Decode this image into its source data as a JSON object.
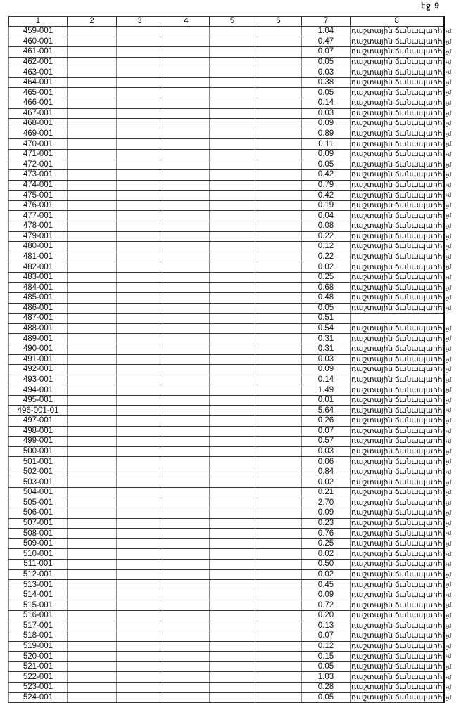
{
  "page_label": "էջ 9",
  "headers": [
    "1",
    "2",
    "3",
    "4",
    "5",
    "6",
    "7",
    "8"
  ],
  "land_type": "դաշտային ճանապարհ",
  "margin_note": "չմ",
  "rows": [
    {
      "id": "459-001",
      "area": "1.04",
      "type": "դաշտային ճանապարհ"
    },
    {
      "id": "460-001",
      "area": "0.47",
      "type": "դաշտային ճանապարհ"
    },
    {
      "id": "461-001",
      "area": "0.07",
      "type": "դաշտային ճանապարհ"
    },
    {
      "id": "462-001",
      "area": "0.05",
      "type": "դաշտային ճանապարհ"
    },
    {
      "id": "463-001",
      "area": "0.03",
      "type": "դաշտային ճանապարհ"
    },
    {
      "id": "464-001",
      "area": "0.38",
      "type": "դաշտային ճանապարհ"
    },
    {
      "id": "465-001",
      "area": "0.05",
      "type": "դաշտային ճանապարհ"
    },
    {
      "id": "466-001",
      "area": "0.14",
      "type": "դաշտային ճանապարհ"
    },
    {
      "id": "467-001",
      "area": "0.03",
      "type": "դաշտային ճանապարհ"
    },
    {
      "id": "468-001",
      "area": "0.09",
      "type": "դաշտային ճանապարհ"
    },
    {
      "id": "469-001",
      "area": "0.89",
      "type": "դաշտային ճանապարհ"
    },
    {
      "id": "470-001",
      "area": "0.11",
      "type": "դաշտային ճանապարհ"
    },
    {
      "id": "471-001",
      "area": "0.09",
      "type": "դաշտային ճանապարհ"
    },
    {
      "id": "472-001",
      "area": "0.05",
      "type": "դաշտային ճանապարհ"
    },
    {
      "id": "473-001",
      "area": "0.42",
      "type": "դաշտային ճանապարհ"
    },
    {
      "id": "474-001",
      "area": "0.79",
      "type": "դաշտային ճանապարհ"
    },
    {
      "id": "475-001",
      "area": "0.42",
      "type": "դաշտային ճանապարհ"
    },
    {
      "id": "476-001",
      "area": "0.19",
      "type": "դաշտային ճանապարհ"
    },
    {
      "id": "477-001",
      "area": "0.04",
      "type": "դաշտային ճանապարհ"
    },
    {
      "id": "478-001",
      "area": "0.08",
      "type": "դաշտային ճանապարհ"
    },
    {
      "id": "479-001",
      "area": "0.22",
      "type": "դաշտային ճանապարհ"
    },
    {
      "id": "480-001",
      "area": "0.12",
      "type": "դաշտային ճանապարհ"
    },
    {
      "id": "481-001",
      "area": "0.22",
      "type": "դաշտային ճանապարհ"
    },
    {
      "id": "482-001",
      "area": "0.02",
      "type": "դաշտային ճանապարհ"
    },
    {
      "id": "483-001",
      "area": "0.25",
      "type": "դաշտային ճանապարհ"
    },
    {
      "id": "484-001",
      "area": "0.68",
      "type": "դաշտային ճանապարհ"
    },
    {
      "id": "485-001",
      "area": "0.48",
      "type": "դաշտային ճանապարհ"
    },
    {
      "id": "486-001",
      "area": "0.05",
      "type": "դաշտային ճանապարհ"
    },
    {
      "id": "487-001",
      "area": "0.51",
      "type": ""
    },
    {
      "id": "488-001",
      "area": "0.54",
      "type": "դաշտային ճանապարհ"
    },
    {
      "id": "489-001",
      "area": "0.31",
      "type": "դաշտային ճանապարհ"
    },
    {
      "id": "490-001",
      "area": "0.31",
      "type": "դաշտային ճանապարհ"
    },
    {
      "id": "491-001",
      "area": "0.03",
      "type": "դաշտային ճանապարհ"
    },
    {
      "id": "492-001",
      "area": "0.09",
      "type": "դաշտային ճանապարհ"
    },
    {
      "id": "493-001",
      "area": "0.14",
      "type": "դաշտային ճանապարհ"
    },
    {
      "id": "494-001",
      "area": "1.49",
      "type": "դաշտային ճանապարհ"
    },
    {
      "id": "495-001",
      "area": "0.01",
      "type": "դաշտային ճանապարհ"
    },
    {
      "id": "496-001-01",
      "area": "5.64",
      "type": "դաշտային ճանապարհ"
    },
    {
      "id": "497-001",
      "area": "0.26",
      "type": "դաշտային ճանապարհ"
    },
    {
      "id": "498-001",
      "area": "0.07",
      "type": "դաշտային ճանապարհ"
    },
    {
      "id": "499-001",
      "area": "0.57",
      "type": "դաշտային ճանապարհ"
    },
    {
      "id": "500-001",
      "area": "0.03",
      "type": "դաշտային ճանապարհ"
    },
    {
      "id": "501-001",
      "area": "0.06",
      "type": "դաշտային ճանապարհ"
    },
    {
      "id": "502-001",
      "area": "0.84",
      "type": "դաշտային ճանապարհ"
    },
    {
      "id": "503-001",
      "area": "0.02",
      "type": "դաշտային ճանապարհ"
    },
    {
      "id": "504-001",
      "area": "0.21",
      "type": "դաշտային ճանապարհ"
    },
    {
      "id": "505-001",
      "area": "2.70",
      "type": "դաշտային ճանապարհ"
    },
    {
      "id": "506-001",
      "area": "0.09",
      "type": "դաշտային ճանապարհ"
    },
    {
      "id": "507-001",
      "area": "0.23",
      "type": "դաշտային ճանապարհ"
    },
    {
      "id": "508-001",
      "area": "0.76",
      "type": "դաշտային ճանապարհ"
    },
    {
      "id": "509-001",
      "area": "0.25",
      "type": "դաշտային ճանապարհ"
    },
    {
      "id": "510-001",
      "area": "0.02",
      "type": "դաշտային ճանապարհ"
    },
    {
      "id": "511-001",
      "area": "0.50",
      "type": "դաշտային ճանապարհ"
    },
    {
      "id": "512-001",
      "area": "0.02",
      "type": "դաշտային ճանապարհ"
    },
    {
      "id": "513-001",
      "area": "0.45",
      "type": "դաշտային ճանապարհ"
    },
    {
      "id": "514-001",
      "area": "0.09",
      "type": "դաշտային ճանապարհ"
    },
    {
      "id": "515-001",
      "area": "0.72",
      "type": "դաշտային ճանապարհ"
    },
    {
      "id": "516-001",
      "area": "0.20",
      "type": "դաշտային ճանապարհ"
    },
    {
      "id": "517-001",
      "area": "0.13",
      "type": "դաշտային ճանապարհ"
    },
    {
      "id": "518-001",
      "area": "0.07",
      "type": "դաշտային ճանապարհ"
    },
    {
      "id": "519-001",
      "area": "0.12",
      "type": "դաշտային ճանապարհ"
    },
    {
      "id": "520-001",
      "area": "0.15",
      "type": "դաշտային ճանապարհ"
    },
    {
      "id": "521-001",
      "area": "0.05",
      "type": "դաշտային ճանապարհ"
    },
    {
      "id": "522-001",
      "area": "1.03",
      "type": "դաշտային ճանապարհ"
    },
    {
      "id": "523-001",
      "area": "0.28",
      "type": "դաշտային ճանապարհ"
    },
    {
      "id": "524-001",
      "area": "0.05",
      "type": "դաշտային ճանապարհ"
    }
  ]
}
